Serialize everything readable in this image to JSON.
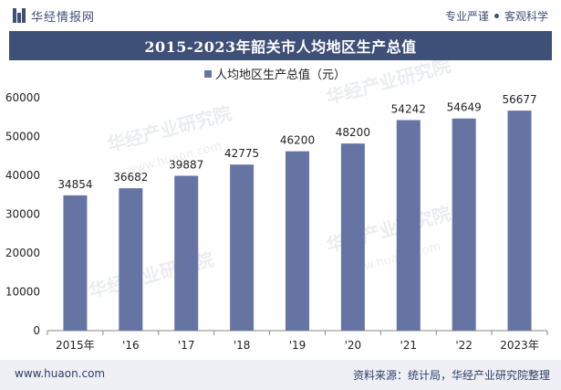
{
  "header": {
    "logo_text": "华经情报网",
    "slogan_left": "专业严谨",
    "slogan_right": "客观科学"
  },
  "title": "2015-2023年韶关市人均地区生产总值",
  "watermark": {
    "main": "华经产业研究院",
    "url": "www.huaon.com"
  },
  "chart_data": {
    "type": "bar",
    "title": "2015-2023年韶关市人均地区生产总值",
    "categories": [
      "2015年",
      "'16",
      "'17",
      "'18",
      "'19",
      "'20",
      "'21",
      "'22",
      "2023年"
    ],
    "series": [
      {
        "name": "人均地区生产总值（元）",
        "values": [
          34854,
          36682,
          39887,
          42775,
          46200,
          48200,
          54242,
          54649,
          56677
        ]
      }
    ],
    "yticks": [
      "0",
      "10000",
      "20000",
      "30000",
      "40000",
      "50000",
      "60000"
    ],
    "ylim": [
      0,
      60000
    ],
    "grid": false,
    "legend": "top-center",
    "bar_color": "#6674a3"
  },
  "footer": {
    "url": "www.huaon.com",
    "source": "资料来源：统计局，华经产业研究院整理"
  },
  "colors": {
    "accent": "#3e4f78",
    "bar": "#6674a3",
    "footer_bg": "#eef0f6"
  }
}
